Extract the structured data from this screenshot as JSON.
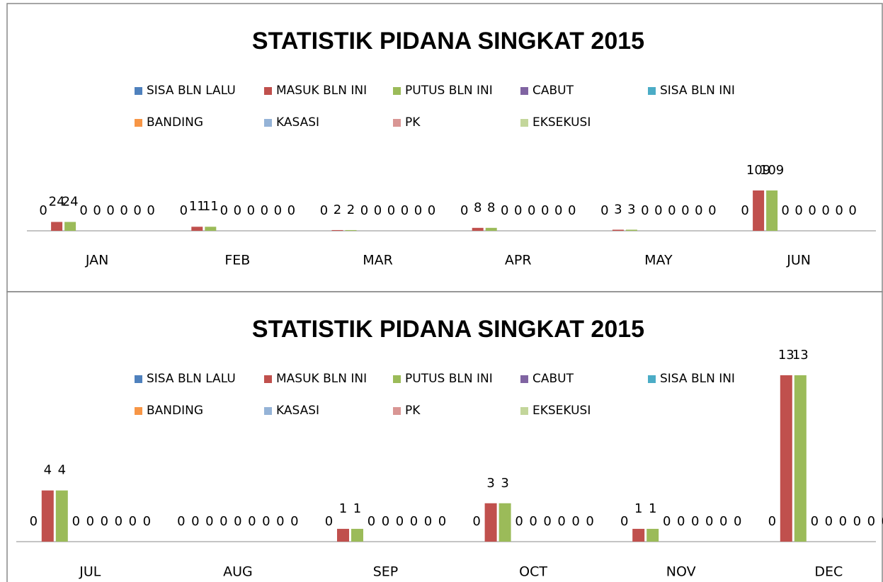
{
  "chart_data": [
    {
      "type": "bar",
      "title": "STATISTIK PIDANA SINGKAT 2015",
      "categories": [
        "JAN",
        "FEB",
        "MAR",
        "APR",
        "MAY",
        "JUN"
      ],
      "series": [
        {
          "name": "SISA BLN LALU",
          "color": "#4f81bd",
          "values": [
            0,
            0,
            0,
            0,
            0,
            0
          ]
        },
        {
          "name": "MASUK BLN INI",
          "color": "#c0504d",
          "values": [
            24,
            11,
            2,
            8,
            3,
            109
          ]
        },
        {
          "name": "PUTUS BLN INI",
          "color": "#9bbb59",
          "values": [
            24,
            11,
            2,
            8,
            3,
            109
          ]
        },
        {
          "name": "CABUT",
          "color": "#8064a2",
          "values": [
            0,
            0,
            0,
            0,
            0,
            0
          ]
        },
        {
          "name": "SISA BLN INI",
          "color": "#4bacc6",
          "values": [
            0,
            0,
            0,
            0,
            0,
            0
          ]
        },
        {
          "name": "BANDING",
          "color": "#f79646",
          "values": [
            0,
            0,
            0,
            0,
            0,
            0
          ]
        },
        {
          "name": "KASASI",
          "color": "#95b3d7",
          "values": [
            0,
            0,
            0,
            0,
            0,
            0
          ]
        },
        {
          "name": "PK",
          "color": "#d99694",
          "values": [
            0,
            0,
            0,
            0,
            0,
            0
          ]
        },
        {
          "name": "EKSEKUSI",
          "color": "#c3d69b",
          "values": [
            0,
            0,
            0,
            0,
            0,
            0
          ]
        }
      ]
    },
    {
      "type": "bar",
      "title": "STATISTIK PIDANA SINGKAT 2015",
      "categories": [
        "JUL",
        "AUG",
        "SEP",
        "OCT",
        "NOV",
        "DEC"
      ],
      "series": [
        {
          "name": "SISA BLN LALU",
          "color": "#4f81bd",
          "values": [
            0,
            0,
            0,
            0,
            0,
            0
          ]
        },
        {
          "name": "MASUK BLN INI",
          "color": "#c0504d",
          "values": [
            4,
            0,
            1,
            3,
            1,
            13
          ]
        },
        {
          "name": "PUTUS BLN INI",
          "color": "#9bbb59",
          "values": [
            4,
            0,
            1,
            3,
            1,
            13
          ]
        },
        {
          "name": "CABUT",
          "color": "#8064a2",
          "values": [
            0,
            0,
            0,
            0,
            0,
            0
          ]
        },
        {
          "name": "SISA BLN INI",
          "color": "#4bacc6",
          "values": [
            0,
            0,
            0,
            0,
            0,
            0
          ]
        },
        {
          "name": "BANDING",
          "color": "#f79646",
          "values": [
            0,
            0,
            0,
            0,
            0,
            0
          ]
        },
        {
          "name": "KASASI",
          "color": "#95b3d7",
          "values": [
            0,
            0,
            0,
            0,
            0,
            0
          ]
        },
        {
          "name": "PK",
          "color": "#d99694",
          "values": [
            0,
            0,
            0,
            0,
            0,
            0
          ]
        },
        {
          "name": "EKSEKUSI",
          "color": "#c3d69b",
          "values": [
            0,
            0,
            0,
            0,
            0,
            0
          ]
        }
      ]
    }
  ]
}
